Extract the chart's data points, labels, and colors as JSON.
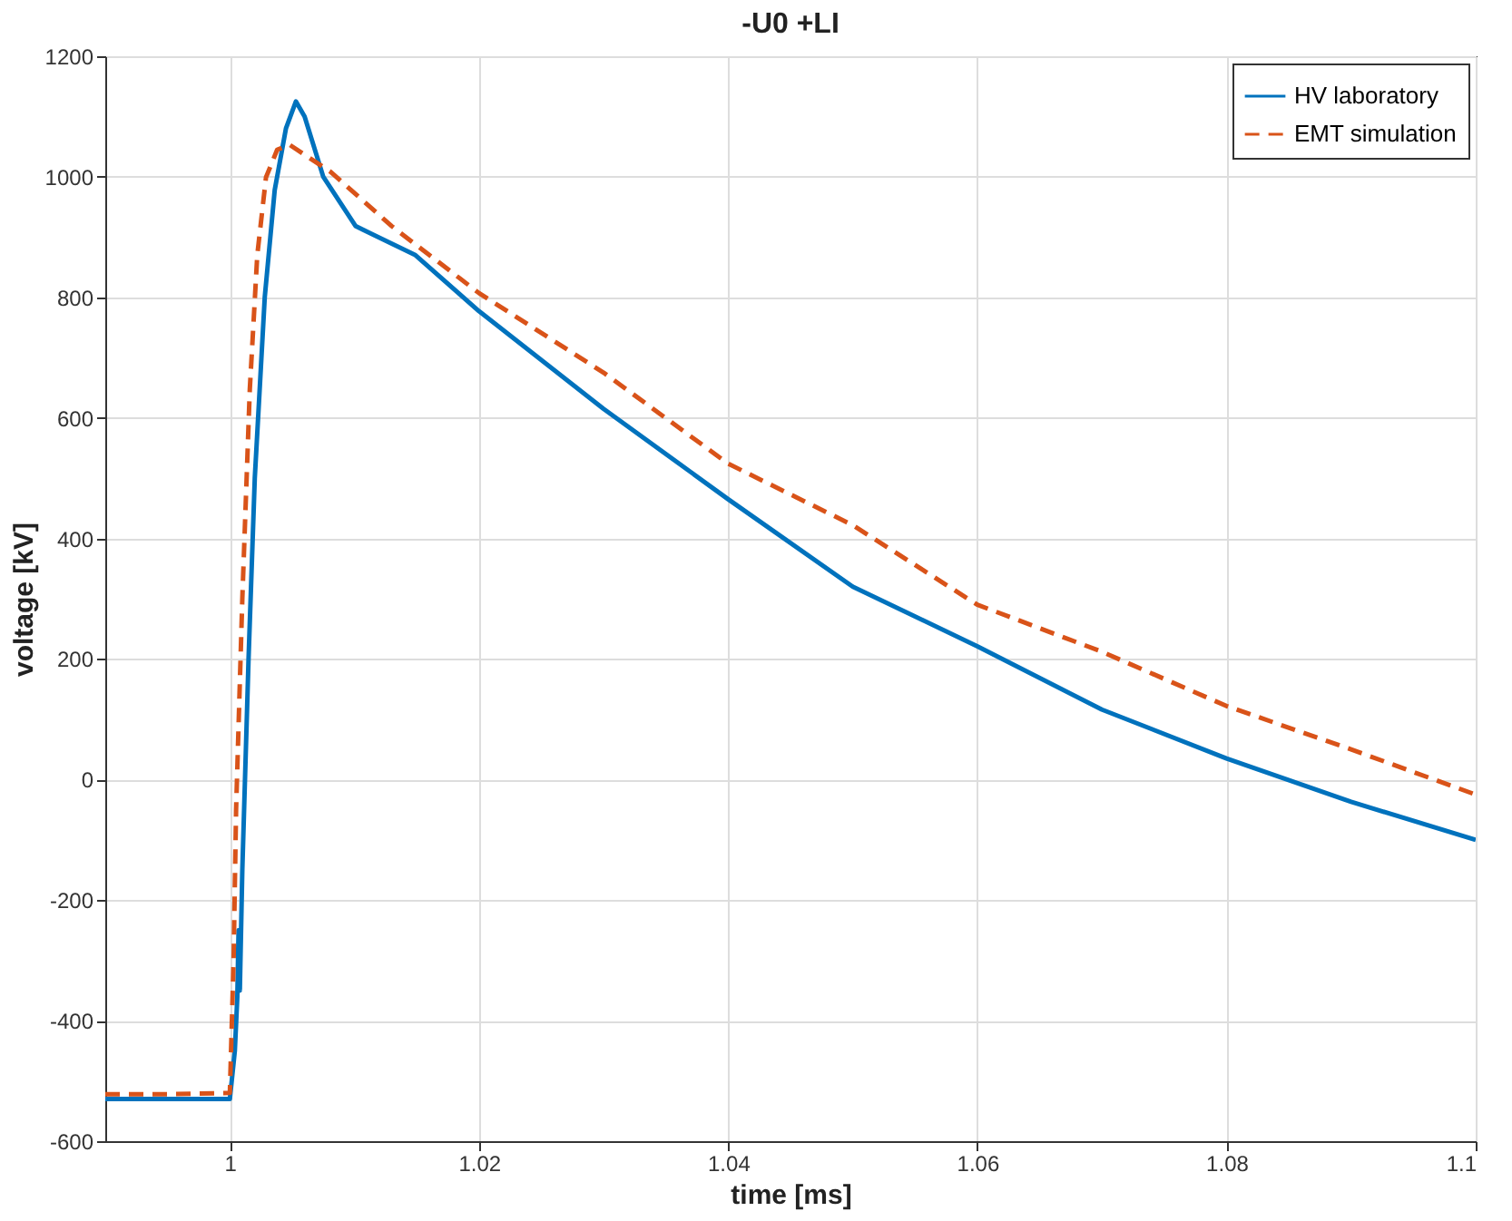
{
  "chart_data": {
    "type": "line",
    "title": "-U0 +LI",
    "xlabel": "time [ms]",
    "ylabel": "voltage [kV]",
    "xlim": [
      0.99,
      1.1
    ],
    "xticks": [
      1,
      1.02,
      1.04,
      1.06,
      1.08,
      1.1
    ],
    "ylim": [
      -600,
      1200
    ],
    "yticks": [
      -600,
      -400,
      -200,
      0,
      200,
      400,
      600,
      800,
      1000,
      1200
    ],
    "grid": true,
    "legend": "top right",
    "series": [
      {
        "name": "HV laboratory",
        "color": "#0072bd",
        "line_style": "solid",
        "x": [
          0.99,
          0.995,
          1.0,
          1.0004,
          1.0006,
          1.0007,
          1.0008,
          1.001,
          1.0015,
          1.002,
          1.0028,
          1.0036,
          1.0045,
          1.0053,
          1.006,
          1.0075,
          1.0101,
          1.0149,
          1.02,
          1.03,
          1.04,
          1.05,
          1.06,
          1.07,
          1.08,
          1.09,
          1.1
        ],
        "values": [
          -530,
          -530,
          -530,
          -450,
          -360,
          -250,
          -350,
          -150,
          200,
          500,
          800,
          978,
          1080,
          1125,
          1100,
          1000,
          918,
          870,
          777,
          615,
          465,
          320,
          221,
          116,
          35,
          -37,
          -100
        ]
      },
      {
        "name": "EMT simulation",
        "color": "#d95319",
        "line_style": "dashed",
        "x": [
          0.99,
          0.995,
          1.0,
          1.0003,
          1.0005,
          1.001,
          1.0016,
          1.0022,
          1.0029,
          1.0038,
          1.0048,
          1.0081,
          1.013,
          1.02,
          1.03,
          1.04,
          1.05,
          1.06,
          1.07,
          1.08,
          1.09,
          1.1
        ],
        "values": [
          -522,
          -522,
          -520,
          -300,
          -50,
          300,
          647,
          870,
          999,
          1045,
          1053,
          1008,
          918,
          807,
          675,
          524,
          422,
          290,
          212,
          122,
          50,
          -25
        ]
      }
    ]
  }
}
